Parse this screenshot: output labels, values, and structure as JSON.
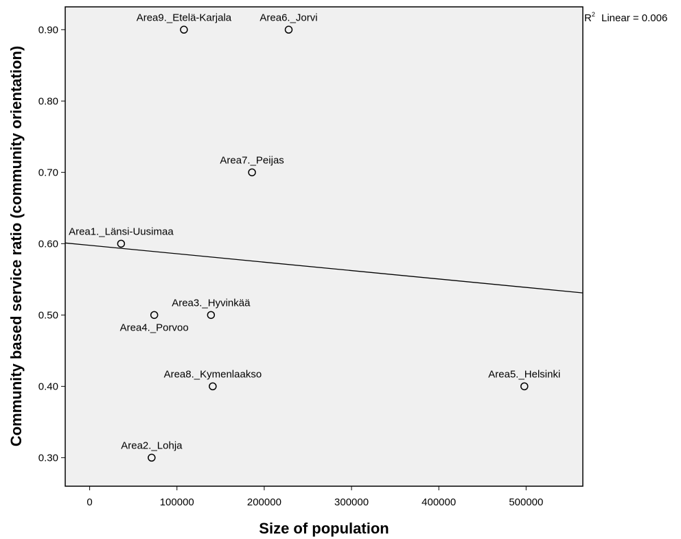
{
  "chart_data": {
    "type": "scatter",
    "xlabel": "Size of population",
    "ylabel": "Community based service ratio (community orientation)",
    "xlim": [
      -28000,
      565000
    ],
    "ylim": [
      0.26,
      0.932
    ],
    "x_ticks": [
      0,
      100000,
      200000,
      300000,
      400000,
      500000
    ],
    "x_tick_labels": [
      "0",
      "100000",
      "200000",
      "300000",
      "400000",
      "500000"
    ],
    "y_ticks": [
      0.3,
      0.4,
      0.5,
      0.6,
      0.7,
      0.8,
      0.9
    ],
    "y_tick_labels": [
      "0.30",
      "0.40",
      "0.50",
      "0.60",
      "0.70",
      "0.80",
      "0.90"
    ],
    "grid": false,
    "background_color": "#f0f0f0",
    "points": [
      {
        "label": "Area9._Etelä-Karjala",
        "x": 108000,
        "y": 0.9,
        "label_pos": "above"
      },
      {
        "label": "Area6._Jorvi",
        "x": 228000,
        "y": 0.9,
        "label_pos": "above"
      },
      {
        "label": "Area7._Peijas",
        "x": 186000,
        "y": 0.7,
        "label_pos": "above"
      },
      {
        "label": "Area1._Länsi-Uusimaa",
        "x": 36000,
        "y": 0.6,
        "label_pos": "above"
      },
      {
        "label": "Area3._Hyvinkää",
        "x": 139000,
        "y": 0.5,
        "label_pos": "above"
      },
      {
        "label": "Area4._Porvoo",
        "x": 74000,
        "y": 0.5,
        "label_pos": "below"
      },
      {
        "label": "Area8._Kymenlaakso",
        "x": 141000,
        "y": 0.4,
        "label_pos": "above"
      },
      {
        "label": "Area5._Helsinki",
        "x": 498000,
        "y": 0.4,
        "label_pos": "above"
      },
      {
        "label": "Area2._Lohja",
        "x": 71000,
        "y": 0.3,
        "label_pos": "above"
      }
    ],
    "fit_line": {
      "x": [
        -28000,
        565000
      ],
      "y": [
        0.601,
        0.531
      ]
    },
    "r2_label": "Linear = 0.006"
  }
}
